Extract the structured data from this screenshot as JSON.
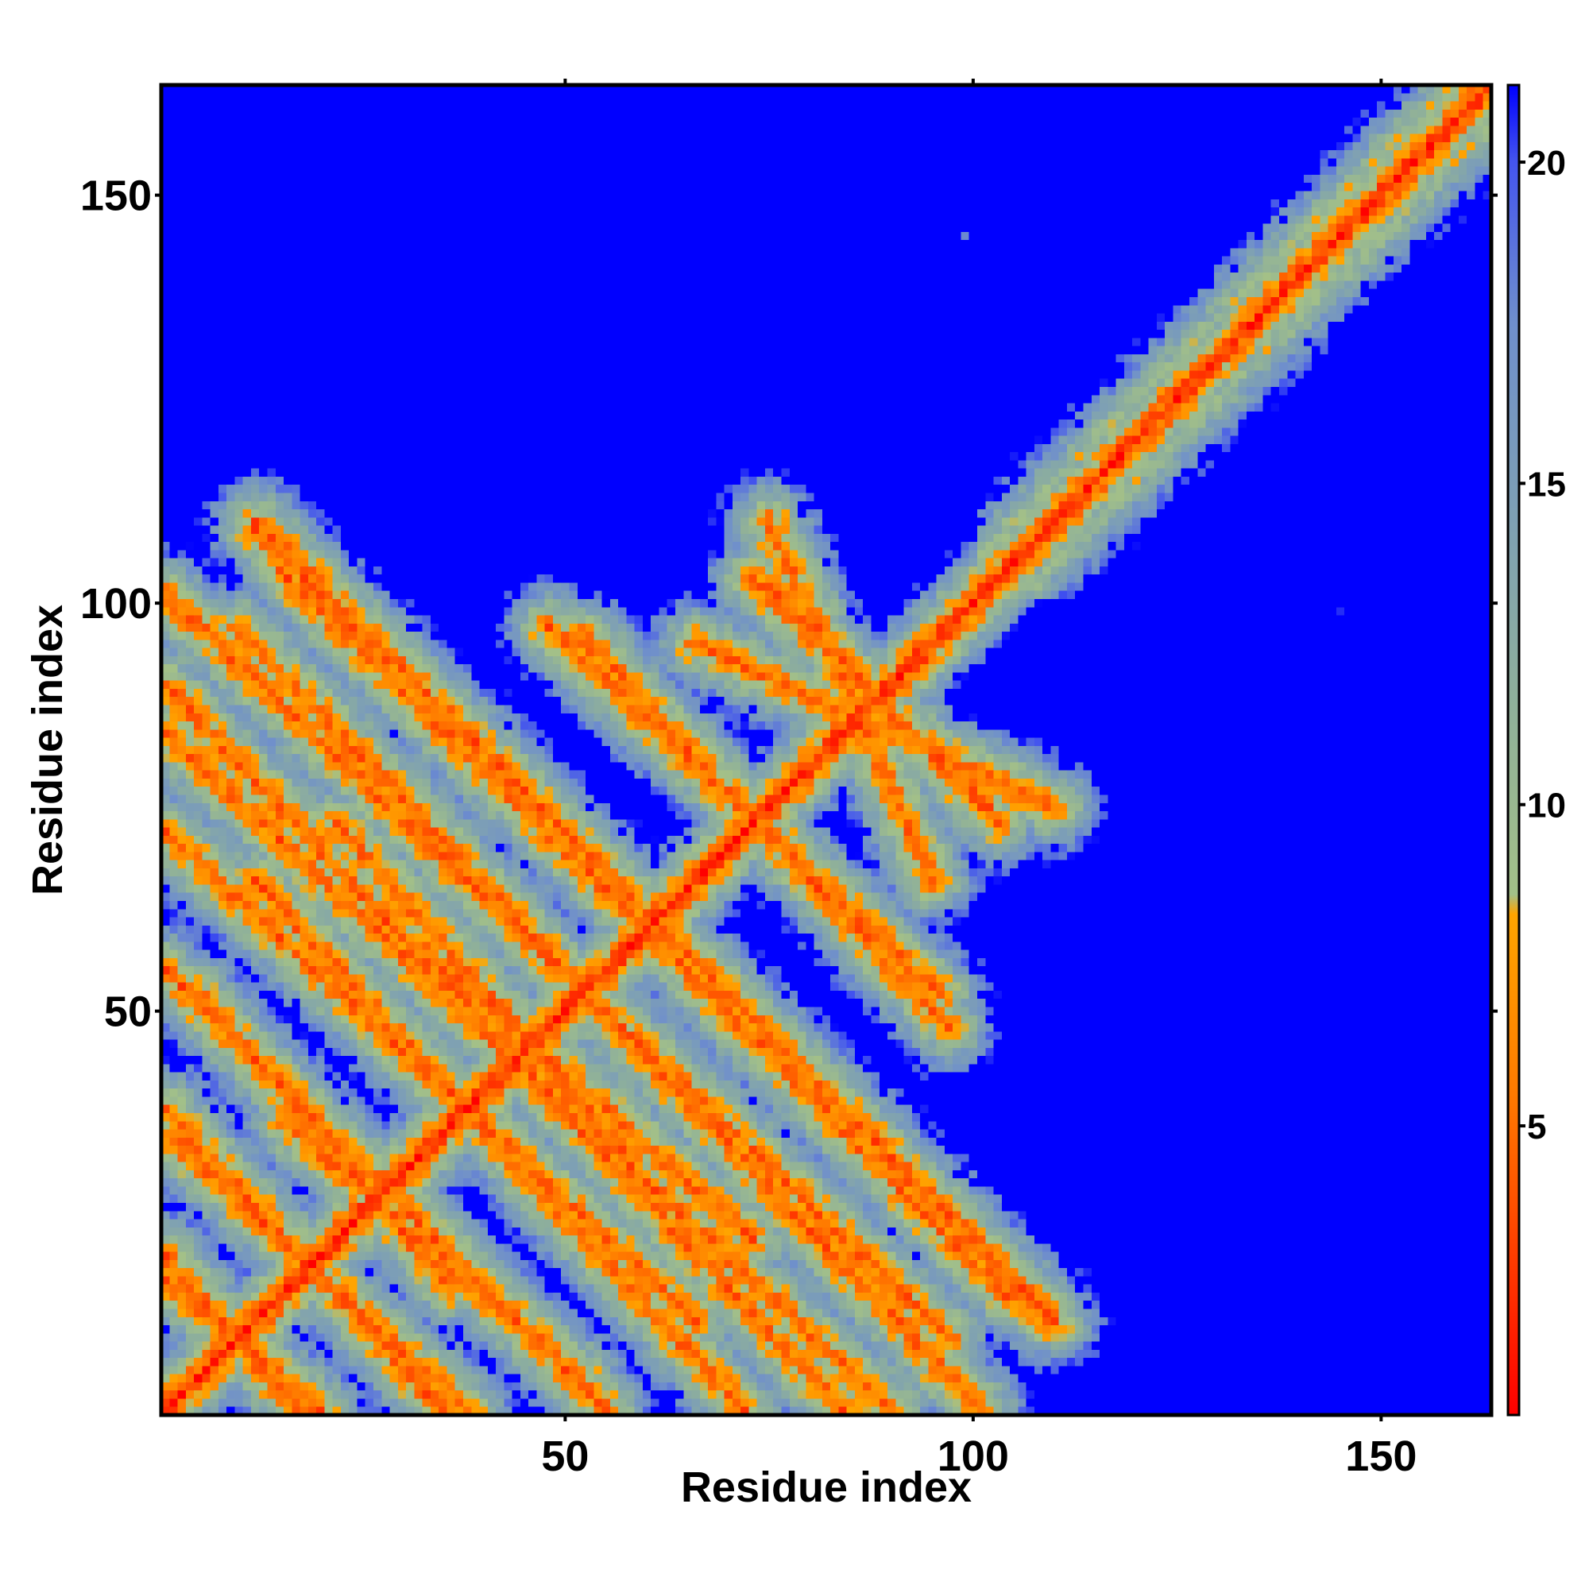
{
  "chart_data": {
    "type": "heatmap",
    "title": "",
    "xlabel": "Residue index",
    "ylabel": "Residue index",
    "n_residues": 163,
    "xlim": [
      1,
      163
    ],
    "ylim": [
      1,
      163
    ],
    "xticks": [
      50,
      100,
      150
    ],
    "yticks": [
      50,
      100,
      150
    ],
    "colorbar": {
      "label": "",
      "range": [
        0.5,
        21.2
      ],
      "ticks": [
        5,
        10,
        15,
        20
      ],
      "stops": [
        {
          "value": 0.5,
          "color": "#ff0000"
        },
        {
          "value": 5.5,
          "color": "#ff7a00"
        },
        {
          "value": 8.3,
          "color": "#ffa500"
        },
        {
          "value": 8.6,
          "color": "#a3c088"
        },
        {
          "value": 11.5,
          "color": "#8fb09a"
        },
        {
          "value": 14.5,
          "color": "#7ea0b4"
        },
        {
          "value": 17.5,
          "color": "#6f8fcc"
        },
        {
          "value": 20.0,
          "color": "#4455ee"
        },
        {
          "value": 21.2,
          "color": "#0000ff"
        }
      ],
      "background_color": "#0000ff"
    },
    "structure": {
      "diagonal": "distance minimum along i = j for all residues 1-163",
      "ridges": [
        {
          "from": [
            1,
            17
          ],
          "to": [
            20,
            1
          ]
        },
        {
          "from": [
            1,
            35
          ],
          "to": [
            38,
            1
          ]
        },
        {
          "from": [
            8,
            48
          ],
          "to": [
            55,
            1
          ]
        },
        {
          "from": [
            12,
            66
          ],
          "to": [
            72,
            1
          ]
        },
        {
          "from": [
            1,
            84
          ],
          "to": [
            90,
            1
          ]
        },
        {
          "from": [
            10,
            97
          ],
          "to": [
            101,
            1
          ]
        },
        {
          "from": [
            15,
            104
          ],
          "to": [
            109,
            12
          ]
        },
        {
          "from": [
            36,
            86
          ],
          "to": [
            110,
            12
          ]
        },
        {
          "from": [
            52,
            96
          ],
          "to": [
            97,
            48
          ]
        },
        {
          "from": [
            66,
            95
          ],
          "to": [
            110,
            75
          ]
        },
        {
          "from": [
            75,
            102
          ],
          "to": [
            103,
            73
          ]
        },
        {
          "from": [
            22,
            73
          ],
          "to": [
            58,
            32
          ]
        },
        {
          "from": [
            5,
            52
          ],
          "to": [
            36,
            16
          ]
        }
      ],
      "isolated_points": [
        [
          99,
          145
        ],
        [
          145,
          99
        ]
      ]
    }
  }
}
